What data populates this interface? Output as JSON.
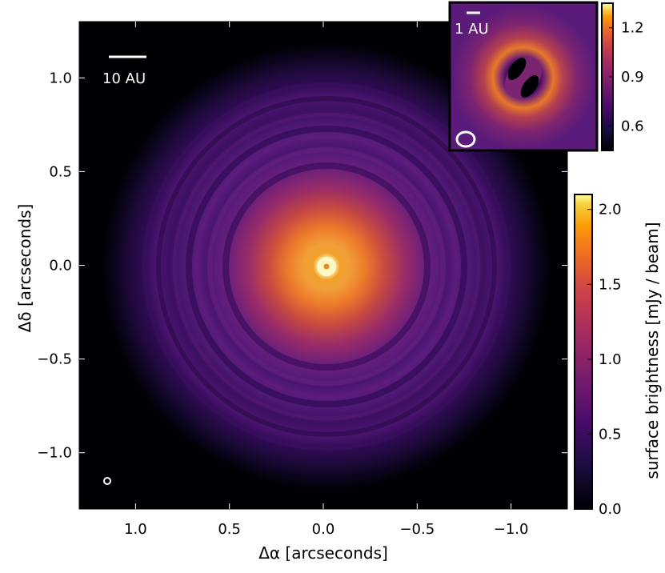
{
  "chart_data": [
    {
      "type": "heatmap",
      "subject": "main image",
      "xlabel": "Δα  [arcseconds]",
      "ylabel": "Δδ  [arcseconds]",
      "xlim": [
        1.3,
        -1.3
      ],
      "ylim": [
        -1.3,
        1.3
      ],
      "x_ticks": [
        1.0,
        0.5,
        0.0,
        -0.5,
        -1.0
      ],
      "x_tick_labels": [
        "1.0",
        "0.5",
        "0.0",
        "−0.5",
        "−1.0"
      ],
      "y_ticks": [
        1.0,
        0.5,
        0.0,
        -0.5,
        -1.0
      ],
      "y_tick_labels": [
        "1.0",
        "0.5",
        "0.0",
        "−0.5",
        "−1.0"
      ],
      "scalebar_label": "10 AU",
      "colormap": "inferno",
      "profile": {
        "radius_arcsec": [
          0.0,
          0.03,
          0.05,
          0.1,
          0.2,
          0.3,
          0.4,
          0.55,
          0.7,
          0.85,
          1.0
        ],
        "surface_brightness": [
          1.2,
          2.1,
          1.9,
          1.7,
          1.3,
          0.75,
          0.5,
          0.38,
          0.4,
          0.25,
          0.05
        ],
        "dark_gaps_arcsec": [
          0.45,
          0.62,
          0.86
        ],
        "bright_rings_arcsec": [
          0.04,
          0.52,
          0.75,
          0.92
        ]
      }
    },
    {
      "type": "heatmap",
      "subject": "inset zoom of inner region",
      "scalebar_label": "1 AU",
      "colormap": "inferno",
      "colorbar": {
        "ticks": [
          0.6,
          0.9,
          1.2
        ],
        "tick_labels": [
          "0.6",
          "0.9",
          "1.2"
        ],
        "range": [
          0.45,
          1.35
        ]
      },
      "profile": {
        "dark_cavity": true,
        "bright_ring": true
      }
    },
    {
      "type": "colorbar",
      "label": "surface brightness [mJy / beam]",
      "range": [
        0.0,
        2.1
      ],
      "ticks": [
        0.0,
        0.5,
        1.0,
        1.5,
        2.0
      ],
      "tick_labels": [
        "0.0",
        "0.5",
        "1.0",
        "1.5",
        "2.0"
      ]
    }
  ]
}
